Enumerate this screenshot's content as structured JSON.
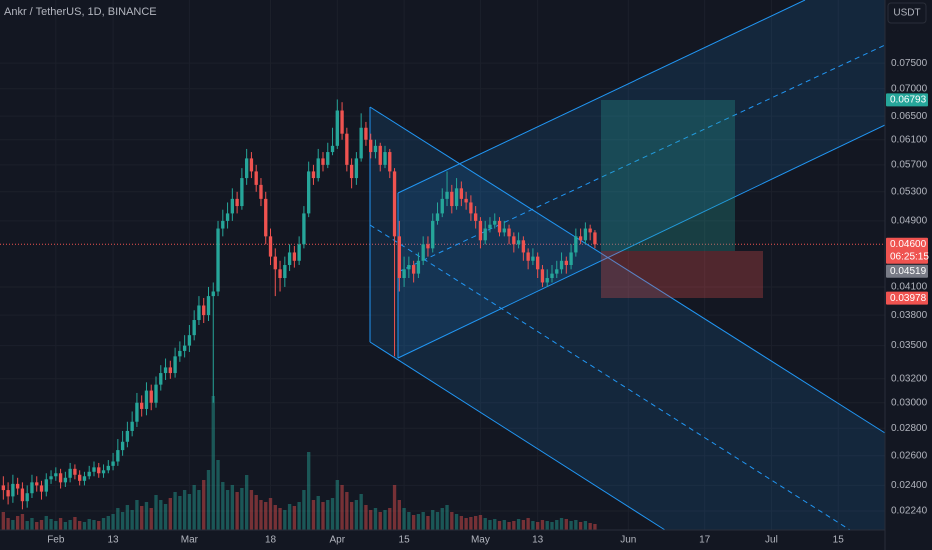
{
  "chart_data": {
    "type": "candlestick",
    "title": "Ankr / TetherUS, 1D, BINANCE",
    "currency": "USDT",
    "log_scale": true,
    "grid": true,
    "up_color": "#26a69a",
    "down_color": "#ef5350",
    "ylim": [
      0.02128,
      0.08893
    ],
    "xlim": [
      20.3,
      205.8
    ],
    "yticks": [
      {
        "value": 0.075,
        "label": "0.07500"
      },
      {
        "value": 0.07,
        "label": "0.07000"
      },
      {
        "value": 0.065,
        "label": "0.06500"
      },
      {
        "value": 0.061,
        "label": "0.06100"
      },
      {
        "value": 0.057,
        "label": "0.05700"
      },
      {
        "value": 0.053,
        "label": "0.05300"
      },
      {
        "value": 0.049,
        "label": "0.04900"
      },
      {
        "value": 0.041,
        "label": "0.04100"
      },
      {
        "value": 0.038,
        "label": "0.03800"
      },
      {
        "value": 0.035,
        "label": "0.03500"
      },
      {
        "value": 0.032,
        "label": "0.03200"
      },
      {
        "value": 0.03,
        "label": "0.03000"
      },
      {
        "value": 0.028,
        "label": "0.02800"
      },
      {
        "value": 0.026,
        "label": "0.02600"
      },
      {
        "value": 0.024,
        "label": "0.02400"
      },
      {
        "value": 0.0224,
        "label": "0.02240"
      }
    ],
    "xticks": [
      {
        "value": 32,
        "label": "Feb"
      },
      {
        "value": 44,
        "label": "13"
      },
      {
        "value": 60,
        "label": "Mar"
      },
      {
        "value": 77,
        "label": "18"
      },
      {
        "value": 91,
        "label": "Apr"
      },
      {
        "value": 105,
        "label": "15"
      },
      {
        "value": 121,
        "label": "May"
      },
      {
        "value": 133,
        "label": "13"
      },
      {
        "value": 152,
        "label": "Jun"
      },
      {
        "value": 168,
        "label": "17"
      },
      {
        "value": 182,
        "label": "Jul"
      },
      {
        "value": 196,
        "label": "15"
      }
    ],
    "price_labels": [
      {
        "value": 0.06793,
        "label": "0.06793",
        "color": "#26a69a"
      },
      {
        "value": 0.046,
        "label": "0.04600",
        "color": "#ef5350",
        "countdown": "06:25:15"
      },
      {
        "value": 0.04519,
        "label": "0.04519",
        "color": "#787b86"
      },
      {
        "value": 0.03978,
        "label": "0.03978",
        "color": "#ef5350"
      }
    ],
    "x": [
      21,
      22,
      23,
      24,
      25,
      26,
      27,
      28,
      29,
      30,
      31,
      32,
      33,
      34,
      35,
      36,
      37,
      38,
      39,
      40,
      41,
      42,
      43,
      44,
      45,
      46,
      47,
      48,
      49,
      50,
      51,
      52,
      53,
      54,
      55,
      56,
      57,
      58,
      59,
      60,
      61,
      62,
      63,
      64,
      65,
      66,
      67,
      68,
      69,
      70,
      71,
      72,
      73,
      74,
      75,
      76,
      77,
      78,
      79,
      80,
      81,
      82,
      83,
      84,
      85,
      86,
      87,
      88,
      89,
      90,
      91,
      92,
      93,
      94,
      95,
      96,
      97,
      98,
      99,
      100,
      101,
      102,
      103,
      104,
      105,
      106,
      107,
      108,
      109,
      110,
      111,
      112,
      113,
      114,
      115,
      116,
      117,
      118,
      119,
      120,
      121,
      122,
      123,
      124,
      125,
      126,
      127,
      128,
      129,
      130,
      131,
      132,
      133,
      134,
      135,
      136,
      137,
      138,
      139,
      140,
      141,
      142,
      143,
      144,
      145
    ],
    "candles": [
      [
        0.024,
        0.0246,
        0.0231,
        0.0237
      ],
      [
        0.0237,
        0.0242,
        0.0228,
        0.0233
      ],
      [
        0.0233,
        0.0247,
        0.0229,
        0.0241
      ],
      [
        0.0241,
        0.0245,
        0.0234,
        0.0238
      ],
      [
        0.0238,
        0.0242,
        0.0225,
        0.023
      ],
      [
        0.023,
        0.024,
        0.0226,
        0.0235
      ],
      [
        0.0235,
        0.0247,
        0.0232,
        0.0242
      ],
      [
        0.0242,
        0.0246,
        0.0236,
        0.024
      ],
      [
        0.024,
        0.0243,
        0.0231,
        0.0236
      ],
      [
        0.0236,
        0.0248,
        0.0233,
        0.0244
      ],
      [
        0.0244,
        0.025,
        0.0241,
        0.0246
      ],
      [
        0.0246,
        0.0252,
        0.0243,
        0.0248
      ],
      [
        0.0248,
        0.0251,
        0.0238,
        0.0242
      ],
      [
        0.0242,
        0.0249,
        0.0239,
        0.0245
      ],
      [
        0.0245,
        0.0255,
        0.0242,
        0.0251
      ],
      [
        0.0251,
        0.0254,
        0.0244,
        0.0247
      ],
      [
        0.0247,
        0.025,
        0.024,
        0.0243
      ],
      [
        0.0243,
        0.0249,
        0.024,
        0.0246
      ],
      [
        0.0246,
        0.0253,
        0.0244,
        0.0249
      ],
      [
        0.0249,
        0.0256,
        0.0246,
        0.0252
      ],
      [
        0.0252,
        0.0255,
        0.0245,
        0.0248
      ],
      [
        0.0248,
        0.0254,
        0.0245,
        0.025
      ],
      [
        0.025,
        0.0257,
        0.0248,
        0.0253
      ],
      [
        0.0253,
        0.0262,
        0.025,
        0.0256
      ],
      [
        0.0256,
        0.0272,
        0.0253,
        0.0264
      ],
      [
        0.0264,
        0.0278,
        0.026,
        0.027
      ],
      [
        0.027,
        0.0285,
        0.0266,
        0.0278
      ],
      [
        0.0278,
        0.0293,
        0.0274,
        0.0285
      ],
      [
        0.0285,
        0.0308,
        0.0281,
        0.03
      ],
      [
        0.03,
        0.0306,
        0.0289,
        0.0295
      ],
      [
        0.0295,
        0.0317,
        0.029,
        0.031
      ],
      [
        0.031,
        0.0315,
        0.0294,
        0.03
      ],
      [
        0.03,
        0.0322,
        0.0296,
        0.0315
      ],
      [
        0.0315,
        0.0332,
        0.031,
        0.0325
      ],
      [
        0.0325,
        0.0338,
        0.0319,
        0.033
      ],
      [
        0.033,
        0.0336,
        0.032,
        0.0325
      ],
      [
        0.0325,
        0.0348,
        0.0321,
        0.034
      ],
      [
        0.034,
        0.0354,
        0.0335,
        0.0345
      ],
      [
        0.0345,
        0.036,
        0.0339,
        0.035
      ],
      [
        0.035,
        0.037,
        0.0344,
        0.036
      ],
      [
        0.036,
        0.0385,
        0.0355,
        0.0375
      ],
      [
        0.0375,
        0.04,
        0.037,
        0.039
      ],
      [
        0.039,
        0.0398,
        0.0372,
        0.038
      ],
      [
        0.038,
        0.041,
        0.0374,
        0.04
      ],
      [
        0.04,
        0.0415,
        0.03,
        0.0405
      ],
      [
        0.0405,
        0.049,
        0.04,
        0.048
      ],
      [
        0.048,
        0.0505,
        0.047,
        0.049
      ],
      [
        0.049,
        0.0515,
        0.048,
        0.05
      ],
      [
        0.05,
        0.0535,
        0.049,
        0.052
      ],
      [
        0.052,
        0.053,
        0.05,
        0.051
      ],
      [
        0.051,
        0.0565,
        0.0505,
        0.055
      ],
      [
        0.055,
        0.0595,
        0.054,
        0.058
      ],
      [
        0.058,
        0.059,
        0.055,
        0.056
      ],
      [
        0.056,
        0.057,
        0.053,
        0.054
      ],
      [
        0.054,
        0.055,
        0.051,
        0.052
      ],
      [
        0.052,
        0.053,
        0.046,
        0.047
      ],
      [
        0.047,
        0.048,
        0.0435,
        0.0445
      ],
      [
        0.0445,
        0.0455,
        0.04,
        0.043
      ],
      [
        0.043,
        0.044,
        0.0405,
        0.042
      ],
      [
        0.042,
        0.0445,
        0.041,
        0.0435
      ],
      [
        0.0435,
        0.046,
        0.0428,
        0.045
      ],
      [
        0.045,
        0.0458,
        0.0432,
        0.044
      ],
      [
        0.044,
        0.047,
        0.0435,
        0.046
      ],
      [
        0.046,
        0.051,
        0.0455,
        0.05
      ],
      [
        0.05,
        0.0575,
        0.0495,
        0.056
      ],
      [
        0.056,
        0.057,
        0.054,
        0.055
      ],
      [
        0.055,
        0.0595,
        0.0545,
        0.058
      ],
      [
        0.058,
        0.059,
        0.056,
        0.057
      ],
      [
        0.057,
        0.0605,
        0.0565,
        0.059
      ],
      [
        0.059,
        0.063,
        0.0585,
        0.06
      ],
      [
        0.06,
        0.068,
        0.0595,
        0.066
      ],
      [
        0.066,
        0.0675,
        0.061,
        0.062
      ],
      [
        0.062,
        0.063,
        0.056,
        0.057
      ],
      [
        0.057,
        0.058,
        0.0535,
        0.055
      ],
      [
        0.055,
        0.059,
        0.054,
        0.058
      ],
      [
        0.058,
        0.0655,
        0.0575,
        0.063
      ],
      [
        0.063,
        0.064,
        0.06,
        0.061
      ],
      [
        0.061,
        0.062,
        0.058,
        0.059
      ],
      [
        0.059,
        0.061,
        0.058,
        0.06
      ],
      [
        0.06,
        0.0605,
        0.056,
        0.057
      ],
      [
        0.057,
        0.06,
        0.0565,
        0.059
      ],
      [
        0.059,
        0.0595,
        0.055,
        0.056
      ],
      [
        0.056,
        0.0565,
        0.034,
        0.047
      ],
      [
        0.047,
        0.049,
        0.0405,
        0.042
      ],
      [
        0.042,
        0.0445,
        0.041,
        0.043
      ],
      [
        0.043,
        0.0445,
        0.042,
        0.0435
      ],
      [
        0.0435,
        0.044,
        0.0415,
        0.0425
      ],
      [
        0.0425,
        0.045,
        0.042,
        0.044
      ],
      [
        0.044,
        0.047,
        0.0435,
        0.046
      ],
      [
        0.046,
        0.047,
        0.0445,
        0.0455
      ],
      [
        0.0455,
        0.05,
        0.045,
        0.049
      ],
      [
        0.049,
        0.0515,
        0.0485,
        0.05
      ],
      [
        0.05,
        0.0535,
        0.0495,
        0.052
      ],
      [
        0.052,
        0.056,
        0.051,
        0.053
      ],
      [
        0.053,
        0.054,
        0.05,
        0.051
      ],
      [
        0.051,
        0.055,
        0.0505,
        0.0535
      ],
      [
        0.0535,
        0.0545,
        0.051,
        0.052
      ],
      [
        0.052,
        0.053,
        0.0505,
        0.0515
      ],
      [
        0.0515,
        0.0525,
        0.049,
        0.05
      ],
      [
        0.05,
        0.051,
        0.048,
        0.049
      ],
      [
        0.049,
        0.0495,
        0.0455,
        0.0465
      ],
      [
        0.0465,
        0.049,
        0.046,
        0.048
      ],
      [
        0.048,
        0.0495,
        0.0475,
        0.0485
      ],
      [
        0.0485,
        0.05,
        0.048,
        0.049
      ],
      [
        0.049,
        0.0495,
        0.047,
        0.0475
      ],
      [
        0.0475,
        0.049,
        0.047,
        0.048
      ],
      [
        0.048,
        0.0485,
        0.046,
        0.047
      ],
      [
        0.047,
        0.0475,
        0.045,
        0.046
      ],
      [
        0.046,
        0.0475,
        0.0455,
        0.0465
      ],
      [
        0.0465,
        0.047,
        0.044,
        0.045
      ],
      [
        0.045,
        0.0455,
        0.043,
        0.044
      ],
      [
        0.044,
        0.0455,
        0.0435,
        0.0445
      ],
      [
        0.0445,
        0.045,
        0.042,
        0.043
      ],
      [
        0.043,
        0.0435,
        0.041,
        0.0415
      ],
      [
        0.0415,
        0.043,
        0.041,
        0.042
      ],
      [
        0.042,
        0.0435,
        0.0415,
        0.0425
      ],
      [
        0.0425,
        0.044,
        0.042,
        0.043
      ],
      [
        0.043,
        0.045,
        0.0425,
        0.044
      ],
      [
        0.044,
        0.0445,
        0.0425,
        0.0435
      ],
      [
        0.0435,
        0.046,
        0.043,
        0.045
      ],
      [
        0.045,
        0.048,
        0.0445,
        0.047
      ],
      [
        0.047,
        0.048,
        0.046,
        0.0465
      ],
      [
        0.0465,
        0.0488,
        0.046,
        0.048
      ],
      [
        0.048,
        0.0485,
        0.0465,
        0.0475
      ],
      [
        0.0475,
        0.0478,
        0.0455,
        0.046
      ]
    ],
    "volume": [
      18,
      12,
      10,
      14,
      16,
      9,
      12,
      8,
      10,
      14,
      11,
      9,
      12,
      8,
      10,
      13,
      9,
      8,
      11,
      10,
      9,
      12,
      14,
      16,
      22,
      18,
      25,
      20,
      30,
      24,
      28,
      22,
      35,
      30,
      26,
      32,
      38,
      34,
      40,
      36,
      45,
      40,
      50,
      60,
      134,
      70,
      48,
      40,
      45,
      38,
      42,
      55,
      40,
      35,
      30,
      28,
      32,
      25,
      22,
      20,
      26,
      24,
      28,
      40,
      78,
      30,
      34,
      28,
      30,
      32,
      50,
      45,
      38,
      28,
      30,
      36,
      25,
      20,
      22,
      18,
      20,
      22,
      45,
      30,
      22,
      18,
      15,
      16,
      18,
      14,
      20,
      18,
      22,
      25,
      18,
      16,
      14,
      12,
      13,
      14,
      15,
      12,
      10,
      11,
      9,
      10,
      8,
      9,
      11,
      10,
      12,
      9,
      8,
      10,
      9,
      8,
      10,
      12,
      11,
      9,
      10,
      8,
      9,
      7,
      6
    ]
  }
}
